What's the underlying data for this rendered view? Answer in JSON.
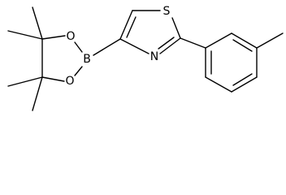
{
  "atoms": {
    "sulfur": "S",
    "nitrogen": "N",
    "boron": "B",
    "oxygen_top": "O",
    "oxygen_bottom": "O"
  }
}
